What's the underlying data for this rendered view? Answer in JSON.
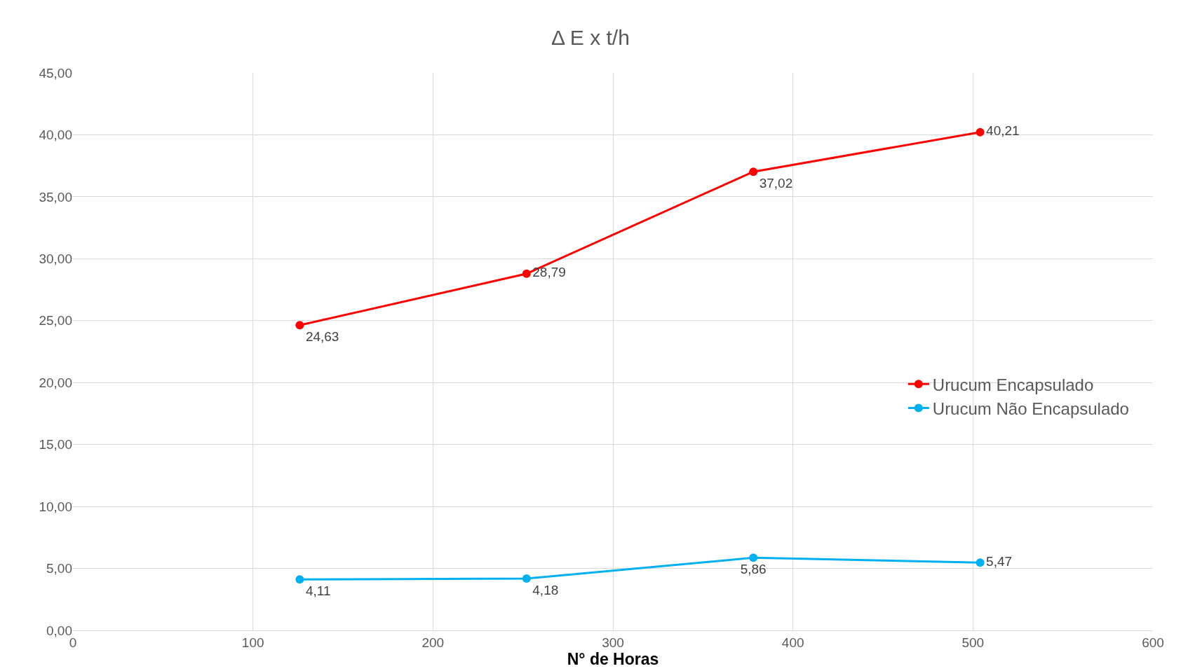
{
  "chart_data": {
    "type": "line",
    "title": "Δ E x t/h",
    "xlabel": "N° de Horas",
    "x": [
      126,
      252,
      378,
      504
    ],
    "series": [
      {
        "name": "Urucum Encapsulado",
        "color": "#ff0000",
        "values": [
          24.63,
          28.79,
          37.02,
          40.21
        ],
        "value_labels": [
          "24,63",
          "28,79",
          "37,02",
          "40,21"
        ]
      },
      {
        "name": "Urucum Não Encapsulado",
        "color": "#00b0f0",
        "values": [
          4.11,
          4.18,
          5.86,
          5.47
        ],
        "value_labels": [
          "4,11",
          "4,18",
          "5,86",
          "5,47"
        ]
      }
    ],
    "xlim": [
      0,
      600
    ],
    "xticks": [
      0,
      100,
      200,
      300,
      400,
      500,
      600
    ],
    "ylim": [
      0,
      45
    ],
    "yticks": [
      {
        "value": 0,
        "label": "0,00"
      },
      {
        "value": 5,
        "label": "5,00"
      },
      {
        "value": 10,
        "label": "10,00"
      },
      {
        "value": 15,
        "label": "15,00"
      },
      {
        "value": 20,
        "label": "20,00"
      },
      {
        "value": 25,
        "label": "25,00"
      },
      {
        "value": 30,
        "label": "30,00"
      },
      {
        "value": 35,
        "label": "35,00"
      },
      {
        "value": 40,
        "label": "40,00"
      },
      {
        "value": 45,
        "label": "45,00"
      }
    ],
    "grid": true,
    "legend": "right",
    "marker": "circle",
    "line_style": "solid"
  }
}
